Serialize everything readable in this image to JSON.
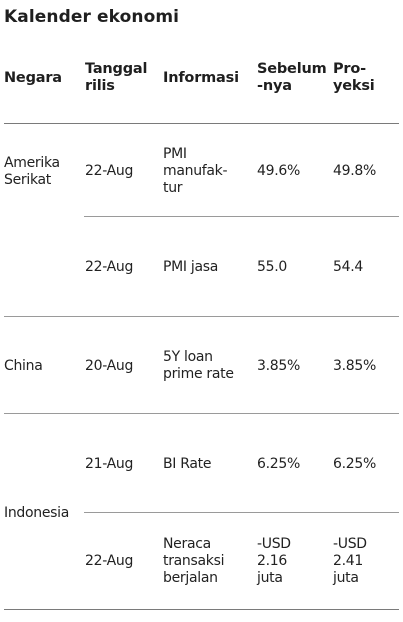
{
  "title": "Kalender ekonomi",
  "headers": {
    "country": "Negara",
    "date": "Tanggal\nrilis",
    "info": "Informasi",
    "previous": "Sebelum\n-nya",
    "projection": "Pro-\nyeksi"
  },
  "countries": {
    "us": "Amerika\nSerikat",
    "china": "China",
    "indonesia": "Indonesia"
  },
  "rows": [
    {
      "date": "22-Aug",
      "info": "PMI\nmanufak-\ntur",
      "previous": "49.6%",
      "projection": "49.8%"
    },
    {
      "date": "22-Aug",
      "info": "PMI jasa",
      "previous": "55.0",
      "projection": "54.4"
    },
    {
      "date": "20-Aug",
      "info": "5Y loan\nprime rate",
      "previous": "3.85%",
      "projection": "3.85%"
    },
    {
      "date": "21-Aug",
      "info": "BI Rate",
      "previous": "6.25%",
      "projection": "6.25%"
    },
    {
      "date": "22-Aug",
      "info": "Neraca\ntransaksi\nberjalan",
      "previous": "-USD\n2.16\njuta",
      "projection": "-USD\n2.41\njuta"
    }
  ]
}
